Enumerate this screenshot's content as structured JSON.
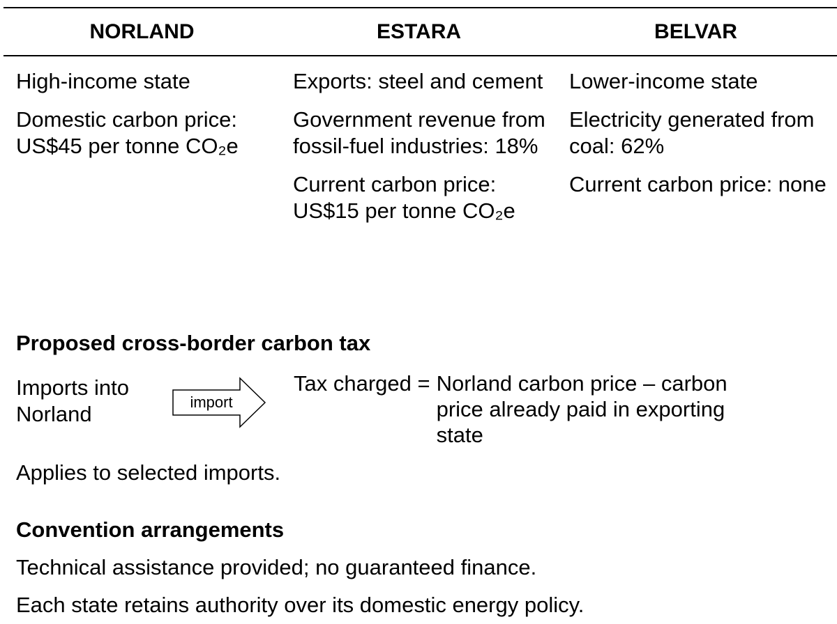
{
  "table": {
    "headers": [
      "NORLAND",
      "ESTARA",
      "BELVAR"
    ],
    "columns": [
      [
        "High-income state",
        "Domestic carbon price: US$45 per tonne CO₂e"
      ],
      [
        "Exports: steel and cement",
        "Government revenue from fossil-fuel industries: 18%",
        "Current carbon price: US$15 per tonne CO₂e"
      ],
      [
        "Lower-income state",
        "Electricity generated from coal: 62%",
        "Current carbon price: none"
      ]
    ]
  },
  "tax": {
    "title": "Proposed cross-border carbon tax",
    "subject": "Imports into Norland",
    "arrow_label": "import",
    "formula_lead": "Tax charged =",
    "formula": "Norland carbon price – carbon price already paid in exporting state",
    "note": "Applies to selected imports."
  },
  "convention": {
    "title": "Convention arrangements",
    "items": [
      "Technical assistance provided; no guaranteed finance.",
      "Each state retains authority over its domestic energy policy."
    ]
  }
}
